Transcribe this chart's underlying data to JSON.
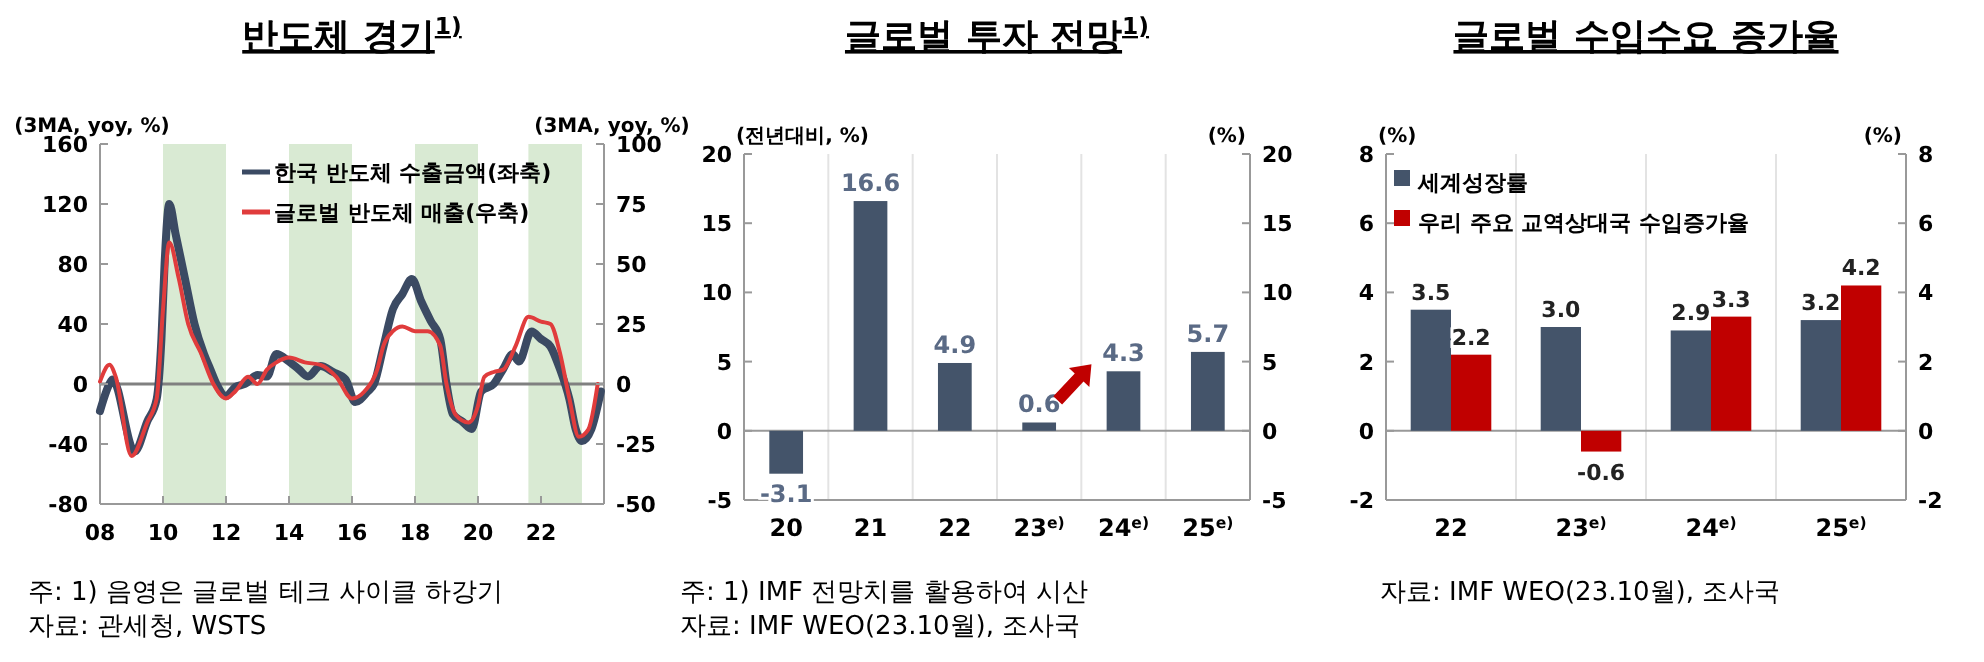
{
  "chart_data": [
    {
      "type": "line",
      "title": "반도체 경기$^{1)}$",
      "ylabel": "(3MA, yoy, %)",
      "y2label": "(3MA, yoy, %)",
      "legend": "top right",
      "xlim": [
        2008,
        2024
      ],
      "xticks": [
        {
          "value": 2008,
          "label": "08"
        },
        {
          "value": 2010,
          "label": "10"
        },
        {
          "value": 2012,
          "label": "12"
        },
        {
          "value": 2014,
          "label": "14"
        },
        {
          "value": 2016,
          "label": "16"
        },
        {
          "value": 2018,
          "label": "18"
        },
        {
          "value": 2020,
          "label": "20"
        },
        {
          "value": 2022,
          "label": "22"
        }
      ],
      "ylim": [
        -80,
        160
      ],
      "yticks": [
        -80,
        -40,
        0,
        40,
        80,
        120,
        160
      ],
      "y2lim": [
        -50,
        100
      ],
      "y2ticks": [
        -50,
        -25,
        0,
        25,
        50,
        75,
        100
      ],
      "bands": [
        {
          "axis": "x",
          "from": 2010,
          "to": 2012,
          "color": "#d9ead3"
        },
        {
          "axis": "x",
          "from": 2014,
          "to": 2016,
          "color": "#d9ead3"
        },
        {
          "axis": "x",
          "from": 2018,
          "to": 2020,
          "color": "#d9ead3"
        },
        {
          "axis": "x",
          "from": 2021.6,
          "to": 2023.3,
          "color": "#d9ead3"
        }
      ],
      "ref_lines": [
        {
          "axis": "y",
          "value": 0,
          "color": "#808080"
        }
      ],
      "series": [
        {
          "name": "한국 반도체 수출금액(좌축)",
          "color": "#3b4a63",
          "x": [
            2008.0,
            2008.3,
            2008.4,
            2009.1,
            2009.5,
            2009.8,
            2009.95,
            2010.05,
            2010.2,
            2010.4,
            2010.7,
            2011.0,
            2011.3,
            2011.5,
            2011.7,
            2012.0,
            2012.3,
            2012.6,
            2013.0,
            2013.3,
            2013.6,
            2014.0,
            2014.3,
            2014.6,
            2015.0,
            2015.4,
            2015.8,
            2016.1,
            2016.5,
            2016.7,
            2017.0,
            2017.3,
            2017.6,
            2017.9,
            2018.2,
            2018.5,
            2018.8,
            2019.0,
            2019.2,
            2019.5,
            2019.8,
            2020.1,
            2020.5,
            2020.8,
            2021.1,
            2021.3,
            2021.7,
            2022.0,
            2022.3,
            2022.6,
            2022.9,
            2023.1,
            2023.3,
            2023.6,
            2023.9
          ],
          "values": [
            -18,
            0,
            3,
            -45,
            -25,
            -10,
            30,
            80,
            120,
            100,
            70,
            40,
            20,
            10,
            0,
            -8,
            -2,
            0,
            6,
            5,
            20,
            15,
            10,
            5,
            12,
            8,
            3,
            -12,
            -5,
            0,
            25,
            50,
            60,
            70,
            55,
            42,
            30,
            0,
            -20,
            -25,
            -30,
            -5,
            0,
            10,
            20,
            15,
            35,
            30,
            25,
            10,
            -10,
            -30,
            -38,
            -30,
            -5
          ]
        },
        {
          "name": "글로벌 반도체 매출(우축)",
          "color": "#e03c3c",
          "axis": "y2",
          "x": [
            2008.0,
            2008.3,
            2008.5,
            2009.0,
            2009.5,
            2009.8,
            2010.0,
            2010.2,
            2010.5,
            2010.8,
            2011.2,
            2011.6,
            2012.0,
            2012.3,
            2012.7,
            2013.0,
            2013.3,
            2013.6,
            2014.0,
            2014.5,
            2015.0,
            2015.5,
            2016.0,
            2016.4,
            2016.8,
            2017.0,
            2017.3,
            2017.6,
            2018.0,
            2018.4,
            2018.8,
            2019.0,
            2019.3,
            2019.7,
            2020.0,
            2020.2,
            2020.5,
            2020.8,
            2021.2,
            2021.6,
            2022.0,
            2022.3,
            2022.6,
            2022.9,
            2023.2,
            2023.5,
            2023.8
          ],
          "values": [
            1,
            8,
            3,
            -30,
            -16,
            -6,
            31,
            59,
            44,
            25,
            13,
            0,
            -6,
            -3,
            3,
            0,
            6,
            9,
            11,
            9,
            8,
            3,
            -6,
            -3,
            6,
            16,
            22,
            24,
            22,
            22,
            16,
            0,
            -13,
            -16,
            -9,
            3,
            5,
            6,
            16,
            28,
            26,
            25,
            13,
            -6,
            -22,
            -19,
            0
          ]
        }
      ],
      "annotations": [
        "주: 1) 음영은 글로벌 테크 사이클 하강기",
        "자료: 관세청, WSTS"
      ]
    },
    {
      "type": "bar",
      "title": "글로벌 투자 전망$^{1)}$",
      "ylabel": "(전년대비, %)",
      "y2label": "(%)",
      "categories": [
        "20",
        "21",
        "22",
        "23$^{e)}$",
        "24$^{e)}$",
        "25$^{e)}$"
      ],
      "values": [
        -3.1,
        16.6,
        4.9,
        0.6,
        4.3,
        5.7
      ],
      "color": "#44546a",
      "ylim": [
        -5,
        20
      ],
      "yticks": [
        -5,
        0,
        5,
        10,
        15,
        20
      ],
      "y2lim": [
        -5,
        20
      ],
      "y2ticks": [
        -5,
        0,
        5,
        10,
        15,
        20
      ],
      "grid": "x",
      "data_labels": true,
      "annotations": [
        "주: 1) IMF 전망치를 활용하여 시산",
        "자료: IMF WEO(23.10월), 조사국"
      ]
    },
    {
      "type": "bar",
      "title": "글로벌 수입수요 증가율",
      "ylabel": "(%)",
      "y2label": "(%)",
      "categories": [
        "22",
        "23$^{e)}$",
        "24$^{e)}$",
        "25$^{e)}$"
      ],
      "ylim": [
        -2,
        8
      ],
      "yticks": [
        -2,
        0,
        2,
        4,
        6,
        8
      ],
      "y2lim": [
        -2,
        8
      ],
      "y2ticks": [
        -2,
        0,
        2,
        4,
        6,
        8
      ],
      "grid": "x",
      "legend": "top left",
      "series": [
        {
          "name": "세계성장률",
          "color": "#44546a",
          "values": [
            3.5,
            3.0,
            2.9,
            3.2
          ],
          "value_labels": [
            "3.5",
            "3.0",
            "2.9",
            "3.2"
          ]
        },
        {
          "name": "우리 주요 교역상대국 수입증가율",
          "color": "#c00000",
          "values": [
            2.2,
            -0.6,
            3.3,
            4.2
          ],
          "value_labels": [
            "2.2",
            "-0.6",
            "3.3",
            "4.2"
          ]
        }
      ],
      "annotations": [
        "자료: IMF WEO(23.10월), 조사국"
      ]
    }
  ]
}
